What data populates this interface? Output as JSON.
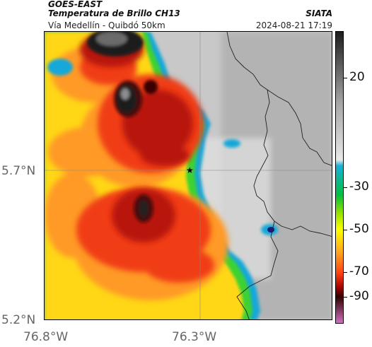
{
  "header": {
    "satellite": "GOES-EAST",
    "product": "Temperatura de Brillo CH13",
    "route": "Vía Medellín - Quibdó 50km",
    "agency": "SIATA",
    "datetime": "2024-08-21 17:19"
  },
  "axes": {
    "y_ticks": [
      "5.7°N",
      "5.2°N"
    ],
    "x_ticks": [
      "76.8°W",
      "76.3°W"
    ]
  },
  "colorbar": {
    "ticks": [
      "20",
      "-30",
      "-50",
      "-70",
      "-90"
    ],
    "colors": [
      "#1e1e1e",
      "#606060",
      "#a8a8a8",
      "#e8e8e8",
      "#1ab0d8",
      "#00c040",
      "#90e000",
      "#ffff00",
      "#ffa020",
      "#ff4010",
      "#a00000",
      "#300000",
      "#d070c0"
    ]
  },
  "map_legend_colors": {
    "cold_core": "#202020",
    "deep_red": "#c81e0a",
    "red": "#f03c14",
    "orange": "#ff9628",
    "yellow": "#ffd714",
    "green": "#3cd232",
    "cyan_edge": "#14a0d2",
    "cloud_free": "#bebebe"
  },
  "marker": {
    "symbol": "★"
  }
}
